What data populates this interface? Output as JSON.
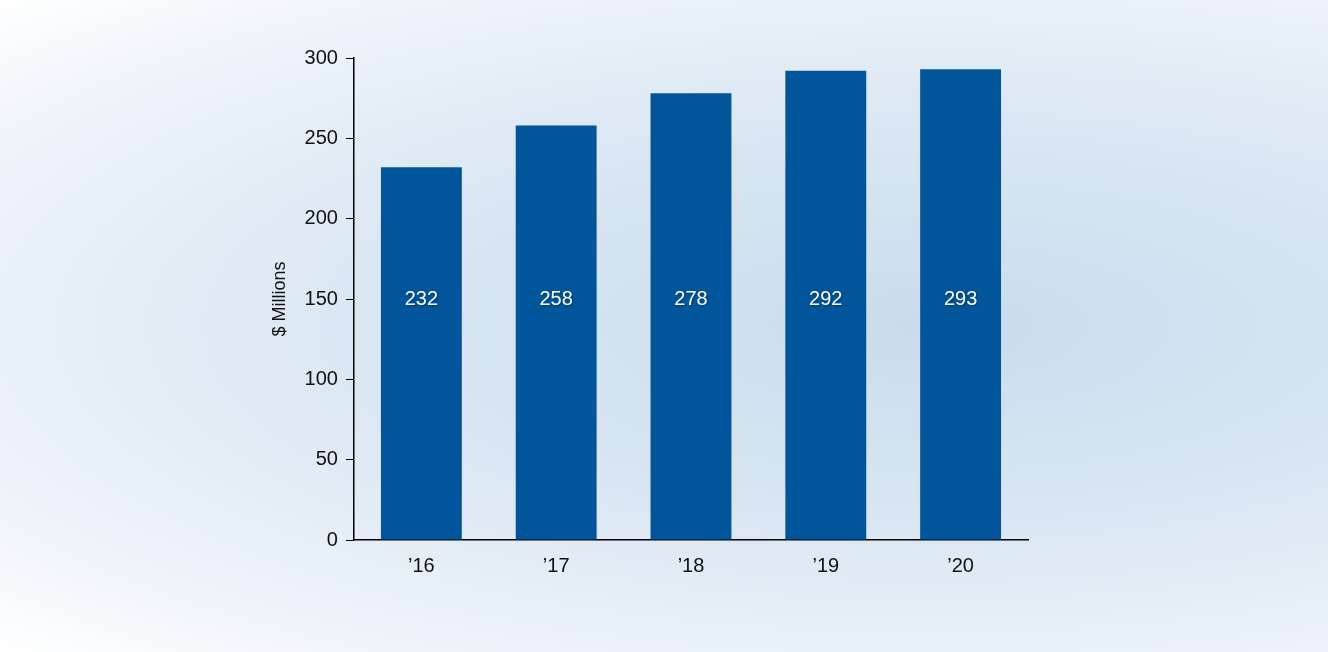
{
  "chart_data": {
    "type": "bar",
    "categories": [
      "’16",
      "’17",
      "’18",
      "’19",
      "’20"
    ],
    "values": [
      232,
      258,
      278,
      292,
      293
    ],
    "color": "#00559b",
    "y_label": "$ Millions",
    "ylim": [
      0,
      300
    ],
    "yticks": [
      0,
      50,
      100,
      150,
      200,
      250,
      300
    ],
    "grid": false,
    "data_labels": true
  }
}
